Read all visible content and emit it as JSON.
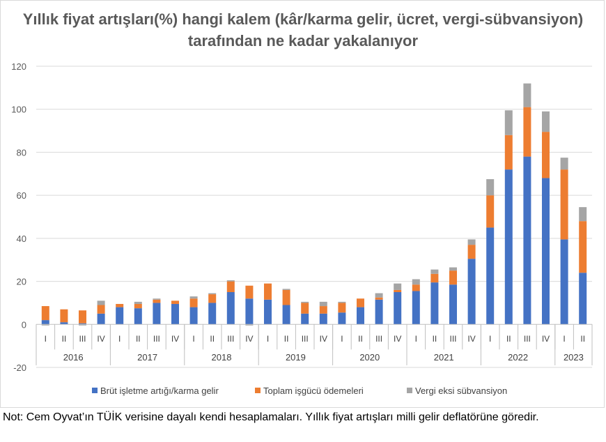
{
  "chart_data": {
    "type": "bar",
    "stacked": true,
    "title": "Yıllık fiyat artışları(%) hangi kalem (kâr/karma gelir, ücret, vergi-sübvansiyon) tarafından ne kadar yakalanıyor",
    "xlabel": "",
    "ylabel": "",
    "ylim": [
      -20,
      120
    ],
    "yticks": [
      -20,
      0,
      20,
      40,
      60,
      80,
      100,
      120
    ],
    "grid": true,
    "legend_position": "bottom",
    "categories": [
      "I",
      "II",
      "III",
      "IV",
      "I",
      "II",
      "III",
      "IV",
      "I",
      "II",
      "III",
      "IV",
      "I",
      "II",
      "III",
      "IV",
      "I",
      "II",
      "III",
      "IV",
      "I",
      "II",
      "III",
      "IV",
      "I",
      "II",
      "III",
      "IV",
      "I",
      "II"
    ],
    "groups": [
      {
        "label": "2016",
        "count": 4
      },
      {
        "label": "2017",
        "count": 4
      },
      {
        "label": "2018",
        "count": 4
      },
      {
        "label": "2019",
        "count": 4
      },
      {
        "label": "2020",
        "count": 4
      },
      {
        "label": "2021",
        "count": 4
      },
      {
        "label": "2022",
        "count": 4
      },
      {
        "label": "2023",
        "count": 2
      }
    ],
    "series": [
      {
        "name": "Brüt işletme artığı/karma gelir",
        "color": "#4472c4",
        "values": [
          2,
          1,
          0.5,
          5,
          8,
          7.5,
          10,
          9.5,
          8,
          10,
          15,
          12,
          11.5,
          9,
          5,
          5,
          5.5,
          8,
          11.5,
          15,
          15.5,
          19.5,
          18.5,
          30.5,
          45,
          72,
          78,
          68,
          39.5,
          24
        ]
      },
      {
        "name": "Toplam işgücü ödemeleri",
        "color": "#ed7d31",
        "values": [
          6.5,
          6,
          6,
          4,
          1.5,
          2,
          1.5,
          1.5,
          4,
          4,
          5,
          6,
          7.5,
          7,
          5,
          3.5,
          4.5,
          4,
          1,
          1,
          3,
          4,
          6.5,
          6.5,
          15,
          16,
          23,
          21.5,
          32.5,
          24
        ]
      },
      {
        "name": "Vergi eksi sübvansiyon",
        "color": "#a5a5a5",
        "values": [
          -0.5,
          0,
          -0.5,
          2,
          0,
          1,
          0.5,
          0,
          1,
          0.5,
          0.5,
          -0.5,
          0,
          0.5,
          0.5,
          2,
          0.5,
          0,
          2,
          3,
          2.5,
          2,
          1.5,
          2.5,
          7.5,
          11.5,
          11,
          9.5,
          5.5,
          6.5
        ]
      }
    ]
  },
  "footnote": "Not: Cem Oyvat’ın TÜİK verisine dayalı kendi hesaplamaları. Yıllık fiyat artışları milli gelir deflatörüne göredir."
}
